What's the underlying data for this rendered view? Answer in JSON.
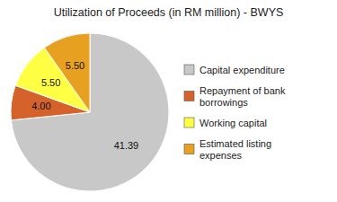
{
  "chart_data": {
    "type": "pie",
    "title": "Utilization of Proceeds (in RM million) - BWYS",
    "categories": [
      "Capital expenditure",
      "Repayment of bank\nborrowings",
      "Working capital",
      "Estimated listing\nexpenses"
    ],
    "values": [
      41.39,
      4.0,
      5.5,
      5.5
    ],
    "value_labels": [
      "41.39",
      "4.00",
      "5.50",
      "5.50"
    ],
    "colors": [
      "#c8c8c8",
      "#d4622a",
      "#ffff44",
      "#e8a020"
    ],
    "data_labels": true,
    "legend": "right"
  }
}
